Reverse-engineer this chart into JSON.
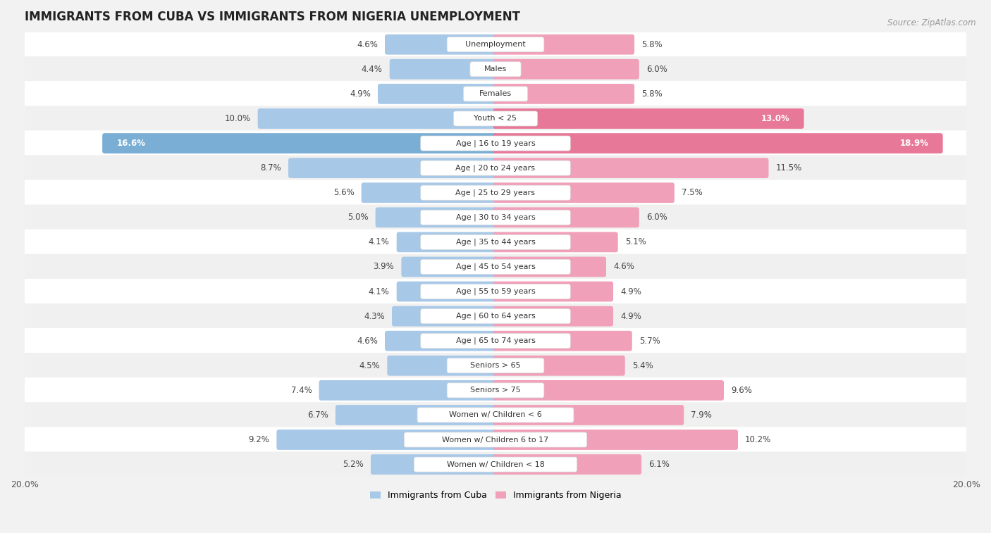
{
  "title": "IMMIGRANTS FROM CUBA VS IMMIGRANTS FROM NIGERIA UNEMPLOYMENT",
  "source": "Source: ZipAtlas.com",
  "categories": [
    "Unemployment",
    "Males",
    "Females",
    "Youth < 25",
    "Age | 16 to 19 years",
    "Age | 20 to 24 years",
    "Age | 25 to 29 years",
    "Age | 30 to 34 years",
    "Age | 35 to 44 years",
    "Age | 45 to 54 years",
    "Age | 55 to 59 years",
    "Age | 60 to 64 years",
    "Age | 65 to 74 years",
    "Seniors > 65",
    "Seniors > 75",
    "Women w/ Children < 6",
    "Women w/ Children 6 to 17",
    "Women w/ Children < 18"
  ],
  "cuba_values": [
    4.6,
    4.4,
    4.9,
    10.0,
    16.6,
    8.7,
    5.6,
    5.0,
    4.1,
    3.9,
    4.1,
    4.3,
    4.6,
    4.5,
    7.4,
    6.7,
    9.2,
    5.2
  ],
  "nigeria_values": [
    5.8,
    6.0,
    5.8,
    13.0,
    18.9,
    11.5,
    7.5,
    6.0,
    5.1,
    4.6,
    4.9,
    4.9,
    5.7,
    5.4,
    9.6,
    7.9,
    10.2,
    6.1
  ],
  "cuba_color": "#a8c8e8",
  "nigeria_color": "#f0a0b8",
  "cuba_highlight_color": "#7aaed4",
  "nigeria_highlight_color": "#e87898",
  "background_color": "#f2f2f2",
  "row_bg_white": "#ffffff",
  "row_bg_light": "#f0f0f0",
  "axis_max": 20.0,
  "legend_cuba": "Immigrants from Cuba",
  "legend_nigeria": "Immigrants from Nigeria",
  "title_fontsize": 12,
  "source_fontsize": 8.5,
  "label_fontsize": 8,
  "value_fontsize": 8.5,
  "value_threshold": 12.0
}
